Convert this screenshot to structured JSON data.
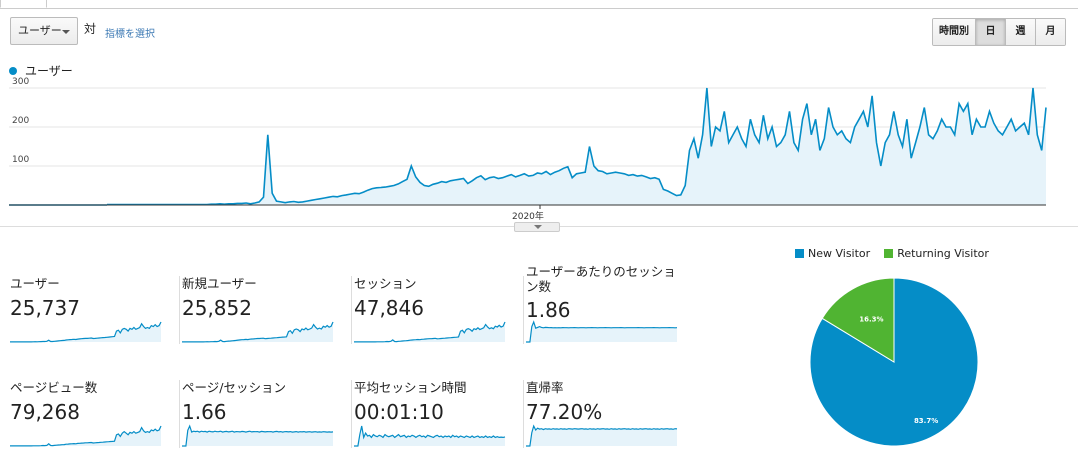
{
  "toolbar": {
    "metric_select": "ユーザー",
    "vs_label": "対",
    "select_metric_link": "指標を選択",
    "time_buttons": [
      "時間別",
      "日",
      "週",
      "月"
    ],
    "active_time": "日"
  },
  "chart_legend": {
    "label": "ユーザー",
    "color": "#058dc7"
  },
  "chart_data": [
    {
      "type": "area",
      "series": [
        {
          "name": "ユーザー",
          "color": "#058dc7",
          "values": [
            1,
            1,
            1,
            1,
            1,
            1,
            1,
            1,
            1,
            1,
            1,
            1,
            1,
            1,
            1,
            1,
            1,
            1,
            1,
            1,
            1,
            1,
            1,
            1,
            2,
            2,
            3,
            2,
            3,
            3,
            4,
            4,
            5,
            3,
            5,
            8,
            20,
            180,
            30,
            10,
            8,
            6,
            8,
            9,
            7,
            8,
            10,
            12,
            14,
            16,
            18,
            20,
            22,
            21,
            24,
            26,
            28,
            30,
            29,
            33,
            38,
            42,
            44,
            45,
            46,
            48,
            50,
            54,
            60,
            66,
            100,
            72,
            58,
            50,
            48,
            53,
            56,
            60,
            58,
            62,
            64,
            66,
            68,
            55,
            62,
            70,
            75,
            65,
            70,
            72,
            68,
            70,
            74,
            78,
            72,
            76,
            80,
            74,
            76,
            82,
            80,
            86,
            78,
            84,
            88,
            94,
            98,
            70,
            80,
            82,
            84,
            150,
            100,
            88,
            86,
            80,
            82,
            84,
            82,
            80,
            76,
            78,
            74,
            76,
            72,
            68,
            70,
            66,
            40,
            36,
            30,
            24,
            26,
            50,
            140,
            170,
            120,
            180,
            300,
            150,
            200,
            190,
            240,
            160,
            180,
            200,
            170,
            150,
            220,
            180,
            160,
            230,
            170,
            200,
            150,
            160,
            180,
            240,
            160,
            140,
            220,
            260,
            180,
            220,
            140,
            170,
            250,
            200,
            180,
            190,
            170,
            160,
            200,
            220,
            240,
            200,
            280,
            160,
            100,
            160,
            180,
            240,
            180,
            150,
            220,
            120,
            160,
            200,
            250,
            180,
            170,
            190,
            220,
            200,
            200,
            180,
            260,
            240,
            260,
            180,
            220,
            200,
            200,
            240,
            210,
            190,
            180,
            200,
            220,
            190,
            200,
            210,
            180,
            300,
            180,
            140,
            250
          ]
        }
      ],
      "x_label": "2020年",
      "ylim": [
        0,
        300
      ],
      "y_ticks": [
        "300",
        "200",
        "100"
      ],
      "grid": true
    },
    {
      "type": "line",
      "series": [
        {
          "name": "ユーザー",
          "values": [
            1,
            1,
            1,
            1,
            1,
            1,
            1,
            1,
            1,
            2,
            1,
            1,
            2,
            3,
            2,
            3,
            4,
            6,
            5,
            8,
            20,
            6,
            5,
            8,
            10,
            12,
            14,
            16,
            18,
            22,
            24,
            26,
            28,
            30,
            28,
            32,
            34,
            36,
            38,
            40,
            40,
            42,
            44,
            38,
            40,
            42,
            44,
            46,
            48,
            50,
            52,
            54,
            56,
            58,
            60,
            120,
            130,
            100,
            140,
            150,
            140,
            120,
            150,
            140,
            160,
            140,
            150,
            160,
            200,
            170,
            150,
            160,
            150,
            180,
            170,
            190,
            170,
            180,
            220
          ]
        }
      ]
    },
    {
      "type": "line",
      "series": [
        {
          "name": "新規ユーザー",
          "values": [
            1,
            1,
            1,
            1,
            1,
            1,
            1,
            1,
            1,
            2,
            1,
            1,
            2,
            3,
            2,
            3,
            4,
            6,
            5,
            8,
            22,
            6,
            5,
            8,
            10,
            12,
            14,
            16,
            18,
            22,
            24,
            26,
            28,
            30,
            28,
            32,
            34,
            36,
            38,
            40,
            40,
            42,
            44,
            38,
            40,
            42,
            44,
            46,
            48,
            50,
            52,
            54,
            56,
            58,
            60,
            120,
            130,
            100,
            140,
            150,
            140,
            120,
            150,
            140,
            160,
            140,
            150,
            160,
            200,
            170,
            150,
            160,
            150,
            180,
            170,
            190,
            170,
            180,
            230
          ]
        }
      ]
    },
    {
      "type": "line",
      "series": [
        {
          "name": "セッション",
          "values": [
            1,
            1,
            1,
            1,
            1,
            1,
            1,
            1,
            1,
            2,
            1,
            1,
            2,
            3,
            2,
            3,
            4,
            6,
            5,
            8,
            25,
            6,
            5,
            8,
            10,
            12,
            14,
            16,
            18,
            22,
            24,
            26,
            28,
            30,
            28,
            32,
            34,
            36,
            38,
            40,
            40,
            42,
            44,
            38,
            40,
            42,
            44,
            46,
            48,
            50,
            52,
            54,
            56,
            58,
            60,
            130,
            140,
            110,
            150,
            160,
            150,
            130,
            160,
            150,
            170,
            150,
            160,
            170,
            210,
            180,
            160,
            170,
            160,
            190,
            180,
            200,
            180,
            190,
            240
          ]
        }
      ]
    },
    {
      "type": "line",
      "series": [
        {
          "name": "ユーザーあたりのセッション数",
          "values": [
            0,
            0,
            0,
            2.0,
            2.6,
            1.8,
            1.9,
            2.0,
            1.9,
            1.85,
            1.9,
            1.88,
            1.86,
            1.87,
            1.85,
            1.86,
            1.84,
            1.86,
            1.85,
            1.87,
            1.86,
            1.86,
            1.85,
            1.86,
            1.86,
            1.87,
            1.86,
            1.85,
            1.86,
            1.86,
            1.86,
            1.85,
            1.86,
            1.86,
            1.87,
            1.86,
            1.86,
            1.85,
            1.86,
            1.86,
            1.86,
            1.87,
            1.86,
            1.86,
            1.85,
            1.86,
            1.86,
            1.86,
            1.86,
            1.87,
            1.86,
            1.85,
            1.86,
            1.86,
            1.86,
            1.86,
            1.86,
            1.86,
            1.87,
            1.86,
            1.86,
            1.85,
            1.86,
            1.86,
            1.86,
            1.86,
            1.87,
            1.86,
            1.86,
            1.85,
            1.86,
            1.86,
            1.86,
            1.86,
            1.87,
            1.86,
            1.86,
            1.85,
            1.86
          ]
        }
      ]
    },
    {
      "type": "line",
      "series": [
        {
          "name": "ページビュー数",
          "values": [
            1,
            1,
            1,
            1,
            1,
            1,
            1,
            1,
            1,
            2,
            1,
            1,
            2,
            3,
            2,
            3,
            4,
            6,
            5,
            8,
            28,
            6,
            5,
            8,
            10,
            12,
            14,
            16,
            18,
            22,
            24,
            26,
            28,
            30,
            28,
            32,
            34,
            36,
            38,
            40,
            40,
            42,
            44,
            38,
            40,
            42,
            44,
            46,
            48,
            50,
            52,
            54,
            56,
            58,
            60,
            140,
            150,
            120,
            160,
            180,
            160,
            140,
            170,
            160,
            180,
            160,
            170,
            180,
            230,
            190,
            170,
            180,
            170,
            200,
            190,
            210,
            190,
            200,
            250
          ]
        }
      ]
    },
    {
      "type": "line",
      "series": [
        {
          "name": "ページ/セッション",
          "values": [
            0,
            0,
            0,
            1.8,
            2.3,
            1.6,
            1.7,
            1.66,
            1.7,
            1.6,
            1.7,
            1.65,
            1.68,
            1.6,
            1.7,
            1.66,
            1.62,
            1.7,
            1.64,
            1.66,
            1.7,
            1.6,
            1.66,
            1.68,
            1.62,
            1.66,
            1.7,
            1.6,
            1.66,
            1.65,
            1.62,
            1.68,
            1.66,
            1.6,
            1.66,
            1.7,
            1.62,
            1.66,
            1.64,
            1.66,
            1.6,
            1.68,
            1.66,
            1.62,
            1.66,
            1.64,
            1.66,
            1.6,
            1.66,
            1.68,
            1.62,
            1.66,
            1.6,
            1.64,
            1.66,
            1.62,
            1.66,
            1.6,
            1.62,
            1.66,
            1.6,
            1.64,
            1.62,
            1.66,
            1.6,
            1.62,
            1.64,
            1.6,
            1.62,
            1.64,
            1.6,
            1.62,
            1.6,
            1.64,
            1.62,
            1.6,
            1.62,
            1.6,
            1.62
          ]
        }
      ]
    },
    {
      "type": "line",
      "series": [
        {
          "name": "平均セッション時間",
          "values": [
            0,
            0,
            0,
            80,
            140,
            60,
            90,
            70,
            75,
            60,
            80,
            70,
            65,
            75,
            70,
            60,
            80,
            70,
            65,
            70,
            75,
            60,
            70,
            80,
            65,
            70,
            75,
            60,
            70,
            65,
            75,
            70,
            60,
            70,
            75,
            65,
            70,
            60,
            75,
            70,
            65,
            60,
            70,
            75,
            65,
            70,
            60,
            70,
            65,
            70,
            60,
            75,
            65,
            70,
            60,
            70,
            65,
            60,
            70,
            65,
            60,
            70,
            60,
            65,
            70,
            60,
            65,
            60,
            70,
            60,
            65,
            60,
            70,
            60,
            65,
            60,
            62,
            60,
            64
          ]
        }
      ]
    },
    {
      "type": "line",
      "series": [
        {
          "name": "直帰率",
          "values": [
            0,
            0,
            0,
            60,
            90,
            72,
            80,
            76,
            78,
            74,
            78,
            76,
            77,
            75,
            78,
            76,
            77,
            75,
            78,
            76,
            77,
            75,
            78,
            77,
            76,
            78,
            77,
            76,
            77,
            78,
            76,
            77,
            75,
            78,
            76,
            77,
            75,
            78,
            76,
            77,
            78,
            76,
            77,
            75,
            78,
            76,
            77,
            75,
            78,
            76,
            77,
            78,
            76,
            77,
            75,
            78,
            76,
            77,
            75,
            78,
            76,
            77,
            78,
            76,
            77,
            75,
            78,
            76,
            77,
            75,
            78,
            76,
            77,
            78,
            76,
            77,
            75,
            78,
            77
          ]
        }
      ]
    },
    {
      "type": "pie",
      "series": [
        {
          "name": "New Visitor",
          "value": 83.7,
          "color": "#058dc7"
        },
        {
          "name": "Returning Visitor",
          "value": 16.3,
          "color": "#50b432"
        }
      ],
      "labels": [
        "83.7%",
        "16.3%"
      ],
      "legend_position": "top"
    }
  ],
  "metrics": [
    {
      "label": "ユーザー",
      "value": "25,737"
    },
    {
      "label": "新規ユーザー",
      "value": "25,852"
    },
    {
      "label": "セッション",
      "value": "47,846"
    },
    {
      "label": "ユーザーあたりのセッション数",
      "value": "1.86"
    },
    {
      "label": "ページビュー数",
      "value": "79,268"
    },
    {
      "label": "ページ/セッション",
      "value": "1.66"
    },
    {
      "label": "平均セッション時間",
      "value": "00:01:10"
    },
    {
      "label": "直帰率",
      "value": "77.20%"
    }
  ]
}
